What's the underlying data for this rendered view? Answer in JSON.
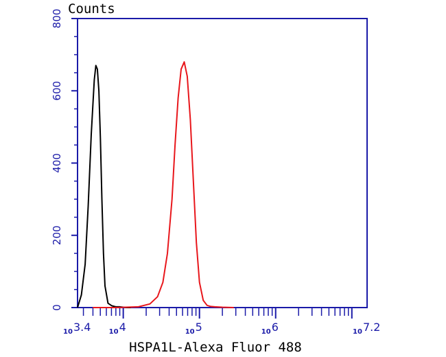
{
  "chart_data": {
    "type": "line",
    "ylabel": "Counts",
    "xlabel": "HSPA1L-Alexa Fluor 488",
    "x_scale": "log10",
    "xlim": [
      3.4,
      7.2
    ],
    "ylim": [
      0,
      800
    ],
    "y_ticks": [
      "0",
      "200",
      "400",
      "600",
      "800"
    ],
    "x_ticks": [
      {
        "base": "10",
        "exp": "3.4",
        "value": 3.4
      },
      {
        "base": "10",
        "exp": "4",
        "value": 4
      },
      {
        "base": "10",
        "exp": "5",
        "value": 5
      },
      {
        "base": "10",
        "exp": "6",
        "value": 6
      },
      {
        "base": "10",
        "exp": "7.2",
        "value": 7.2
      }
    ],
    "grid": false,
    "legend": "none",
    "axis_color": "#1a1aa8",
    "series": [
      {
        "color": "#000000",
        "x": [
          3.4,
          3.45,
          3.5,
          3.54,
          3.58,
          3.62,
          3.64,
          3.66,
          3.68,
          3.7,
          3.72,
          3.74,
          3.76,
          3.8,
          3.85,
          3.9,
          3.95,
          4.0,
          4.05,
          4.1
        ],
        "y": [
          0,
          35,
          120,
          280,
          480,
          630,
          670,
          660,
          600,
          470,
          300,
          150,
          60,
          12,
          5,
          2,
          2,
          1,
          0,
          0
        ]
      },
      {
        "color": "#e8161b",
        "x": [
          3.6,
          3.9,
          4.2,
          4.35,
          4.45,
          4.52,
          4.58,
          4.64,
          4.68,
          4.72,
          4.76,
          4.8,
          4.84,
          4.88,
          4.92,
          4.96,
          5.0,
          5.05,
          5.1,
          5.15,
          5.2,
          5.3,
          5.45
        ],
        "y": [
          0,
          0,
          2,
          10,
          30,
          70,
          150,
          300,
          450,
          580,
          660,
          680,
          640,
          520,
          350,
          180,
          70,
          20,
          6,
          3,
          2,
          1,
          0
        ]
      }
    ]
  }
}
